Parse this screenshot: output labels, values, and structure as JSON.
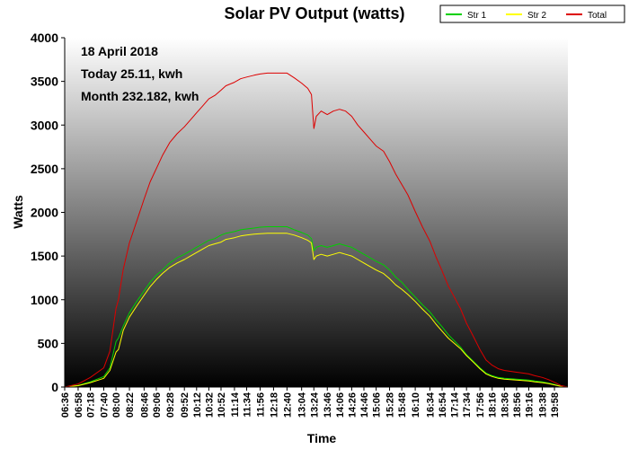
{
  "chart_data": {
    "type": "line",
    "title": "Solar PV Output (watts)",
    "xlabel": "Time",
    "ylabel": "Watts",
    "ylim": [
      0,
      4000
    ],
    "yticks": [
      0,
      500,
      1000,
      1500,
      2000,
      2500,
      3000,
      3500,
      4000
    ],
    "x_tick_labels": [
      "06:36",
      "06:58",
      "07:18",
      "07:40",
      "08:00",
      "08:22",
      "08:46",
      "09:06",
      "09:28",
      "09:52",
      "10:12",
      "10:32",
      "10:52",
      "11:14",
      "11:34",
      "11:56",
      "12:18",
      "12:40",
      "13:04",
      "13:24",
      "13:46",
      "14:06",
      "14:26",
      "14:46",
      "15:06",
      "15:28",
      "15:48",
      "16:10",
      "16:34",
      "16:54",
      "17:14",
      "17:34",
      "17:56",
      "18:16",
      "18:36",
      "18:56",
      "19:16",
      "19:38",
      "19:58"
    ],
    "x_start": "06:36",
    "x_end": "20:20",
    "grid": false,
    "legend_position": "top-right",
    "annotations": [
      "18 April 2018",
      "Today 25.11, kwh",
      "Month 232.182, kwh"
    ],
    "x": [
      "06:36",
      "06:58",
      "07:18",
      "07:40",
      "07:50",
      "08:00",
      "08:04",
      "08:12",
      "08:22",
      "08:34",
      "08:46",
      "08:56",
      "09:06",
      "09:16",
      "09:28",
      "09:40",
      "09:52",
      "10:02",
      "10:12",
      "10:22",
      "10:32",
      "10:42",
      "10:52",
      "11:00",
      "11:14",
      "11:24",
      "11:34",
      "11:46",
      "11:56",
      "12:08",
      "12:18",
      "12:30",
      "12:40",
      "12:52",
      "13:04",
      "13:14",
      "13:20",
      "13:24",
      "13:28",
      "13:36",
      "13:46",
      "13:56",
      "14:06",
      "14:16",
      "14:26",
      "14:36",
      "14:46",
      "14:56",
      "15:06",
      "15:18",
      "15:28",
      "15:38",
      "15:48",
      "15:58",
      "16:10",
      "16:22",
      "16:34",
      "16:44",
      "16:54",
      "17:04",
      "17:14",
      "17:24",
      "17:34",
      "17:46",
      "17:56",
      "18:06",
      "18:16",
      "18:26",
      "18:36",
      "18:46",
      "18:56",
      "19:06",
      "19:16",
      "19:26",
      "19:38",
      "19:48",
      "19:58",
      "20:08",
      "20:20"
    ],
    "series": [
      {
        "name": "Str 1",
        "color": "#00d000",
        "values": [
          0,
          20,
          60,
          120,
          220,
          520,
          560,
          700,
          850,
          980,
          1100,
          1200,
          1280,
          1340,
          1420,
          1480,
          1520,
          1560,
          1600,
          1640,
          1680,
          1700,
          1740,
          1760,
          1780,
          1800,
          1810,
          1820,
          1830,
          1835,
          1835,
          1835,
          1835,
          1800,
          1770,
          1740,
          1700,
          1560,
          1600,
          1620,
          1600,
          1620,
          1640,
          1620,
          1600,
          1560,
          1520,
          1480,
          1440,
          1400,
          1340,
          1260,
          1200,
          1120,
          1030,
          940,
          860,
          770,
          690,
          600,
          530,
          460,
          370,
          290,
          220,
          160,
          130,
          110,
          100,
          95,
          90,
          85,
          80,
          70,
          60,
          45,
          30,
          10,
          0
        ]
      },
      {
        "name": "Str 2",
        "color": "#ffff00",
        "values": [
          0,
          15,
          50,
          100,
          190,
          400,
          430,
          650,
          800,
          930,
          1050,
          1150,
          1230,
          1300,
          1370,
          1420,
          1460,
          1500,
          1540,
          1580,
          1620,
          1640,
          1660,
          1690,
          1710,
          1730,
          1740,
          1750,
          1755,
          1760,
          1760,
          1760,
          1760,
          1740,
          1710,
          1680,
          1650,
          1460,
          1500,
          1520,
          1500,
          1520,
          1540,
          1520,
          1500,
          1460,
          1420,
          1380,
          1340,
          1300,
          1240,
          1170,
          1120,
          1060,
          980,
          890,
          810,
          720,
          640,
          560,
          500,
          440,
          360,
          280,
          210,
          150,
          120,
          100,
          90,
          85,
          80,
          75,
          70,
          60,
          50,
          40,
          25,
          8,
          0
        ]
      },
      {
        "name": "Total",
        "color": "#dd0000",
        "values": [
          0,
          35,
          110,
          220,
          410,
          900,
          1000,
          1350,
          1650,
          1900,
          2150,
          2350,
          2500,
          2650,
          2800,
          2900,
          2980,
          3060,
          3140,
          3220,
          3300,
          3340,
          3400,
          3450,
          3490,
          3530,
          3550,
          3570,
          3585,
          3595,
          3595,
          3595,
          3595,
          3540,
          3480,
          3420,
          3350,
          2960,
          3100,
          3160,
          3120,
          3160,
          3180,
          3160,
          3100,
          3000,
          2920,
          2840,
          2760,
          2700,
          2580,
          2440,
          2320,
          2200,
          2010,
          1830,
          1670,
          1490,
          1330,
          1160,
          1030,
          900,
          730,
          570,
          430,
          310,
          250,
          210,
          190,
          180,
          170,
          160,
          150,
          130,
          110,
          85,
          55,
          18,
          0
        ]
      }
    ]
  }
}
